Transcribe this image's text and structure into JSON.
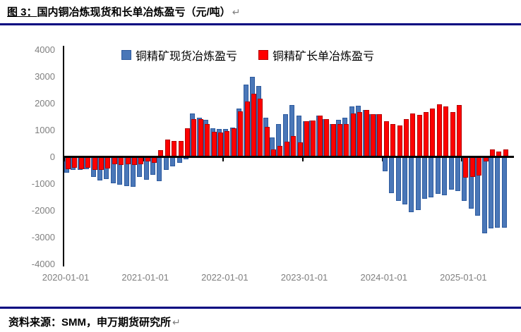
{
  "title": {
    "prefix": "图 3：",
    "text": "国内铜冶炼现货和长单冶炼盈亏（元/吨）",
    "return_mark": "↵"
  },
  "legend": [
    {
      "label": "铜精矿现货冶炼盈亏",
      "color": "#4a77b8"
    },
    {
      "label": "铜精矿长单冶炼盈亏",
      "color": "#fe0000"
    }
  ],
  "source": {
    "text": "资料来源：SMM，申万期货研究所",
    "return_mark": "↵"
  },
  "colors": {
    "divider_rule": "#000080",
    "spot_fill": "#4a77b8",
    "spot_border": "#2d5a9e",
    "long_fill": "#fe0000",
    "long_border": "#b40000",
    "axis_line": "#000000",
    "axis_text": "#7f7f7f"
  },
  "chart_data": {
    "type": "bar",
    "title": "国内铜冶炼现货和长单冶炼盈亏（元/吨）",
    "ylabel": "元/吨",
    "xlabel": "",
    "ylim": [
      -4000,
      4000
    ],
    "yticks": [
      4000,
      3000,
      2000,
      1000,
      0,
      -1000,
      -2000,
      -3000,
      -4000
    ],
    "xticks": [
      "2020-01-01",
      "2021-01-01",
      "2022-01-01",
      "2023-01-01",
      "2024-01-01",
      "2025-01-01"
    ],
    "grid": false,
    "legend_position": "top",
    "categories": [
      "2020-01",
      "2020-02",
      "2020-03",
      "2020-04",
      "2020-05",
      "2020-06",
      "2020-07",
      "2020-08",
      "2020-09",
      "2020-10",
      "2020-11",
      "2020-12",
      "2021-01",
      "2021-02",
      "2021-03",
      "2021-04",
      "2021-05",
      "2021-06",
      "2021-07",
      "2021-08",
      "2021-09",
      "2021-10",
      "2021-11",
      "2021-12",
      "2022-01",
      "2022-02",
      "2022-03",
      "2022-04",
      "2022-05",
      "2022-06",
      "2022-07",
      "2022-08",
      "2022-09",
      "2022-10",
      "2022-11",
      "2022-12",
      "2023-01",
      "2023-02",
      "2023-03",
      "2023-04",
      "2023-05",
      "2023-06",
      "2023-07",
      "2023-08",
      "2023-09",
      "2023-10",
      "2023-11",
      "2023-12",
      "2024-01",
      "2024-02",
      "2024-03",
      "2024-04",
      "2024-05",
      "2024-06",
      "2024-07",
      "2024-08",
      "2024-09",
      "2024-10",
      "2024-11",
      "2024-12",
      "2025-01",
      "2025-02",
      "2025-03",
      "2025-04",
      "2025-05",
      "2025-06",
      "2025-07"
    ],
    "series": [
      {
        "name": "铜精矿现货冶炼盈亏",
        "color": "#4a77b8",
        "border": "#2d5a9e",
        "values": [
          -590,
          -480,
          -480,
          -450,
          -750,
          -880,
          -830,
          -1000,
          -1040,
          -1090,
          -1120,
          -740,
          -870,
          -660,
          -900,
          -480,
          -350,
          -230,
          -100,
          1630,
          1460,
          1390,
          1070,
          1040,
          1030,
          1100,
          1820,
          2700,
          2990,
          2640,
          1460,
          720,
          1240,
          1600,
          1930,
          1540,
          1330,
          1350,
          1540,
          1410,
          1220,
          1390,
          1460,
          1890,
          1910,
          1760,
          1590,
          1600,
          -530,
          -1350,
          -1650,
          -1780,
          -2080,
          -1990,
          -1560,
          -1520,
          -1390,
          -1430,
          -1220,
          -1270,
          -1650,
          -1950,
          -2210,
          -2850,
          -2680,
          -2640,
          -2640
        ]
      },
      {
        "name": "铜精矿长单冶炼盈亏",
        "color": "#fe0000",
        "border": "#b40000",
        "values": [
          -460,
          -420,
          -450,
          -400,
          -480,
          -480,
          -440,
          -270,
          -310,
          -290,
          -300,
          -290,
          -180,
          -220,
          250,
          640,
          600,
          600,
          1070,
          1410,
          1410,
          1240,
          940,
          900,
          950,
          1080,
          1700,
          2080,
          2360,
          2180,
          1110,
          290,
          400,
          570,
          770,
          550,
          1330,
          1350,
          1540,
          1410,
          1220,
          1220,
          1240,
          1630,
          1670,
          1760,
          1590,
          1600,
          1330,
          1220,
          1180,
          1410,
          1630,
          1560,
          1670,
          1820,
          1960,
          1890,
          1670,
          1950,
          -780,
          -740,
          -700,
          -180,
          290,
          210,
          290
        ]
      }
    ]
  }
}
